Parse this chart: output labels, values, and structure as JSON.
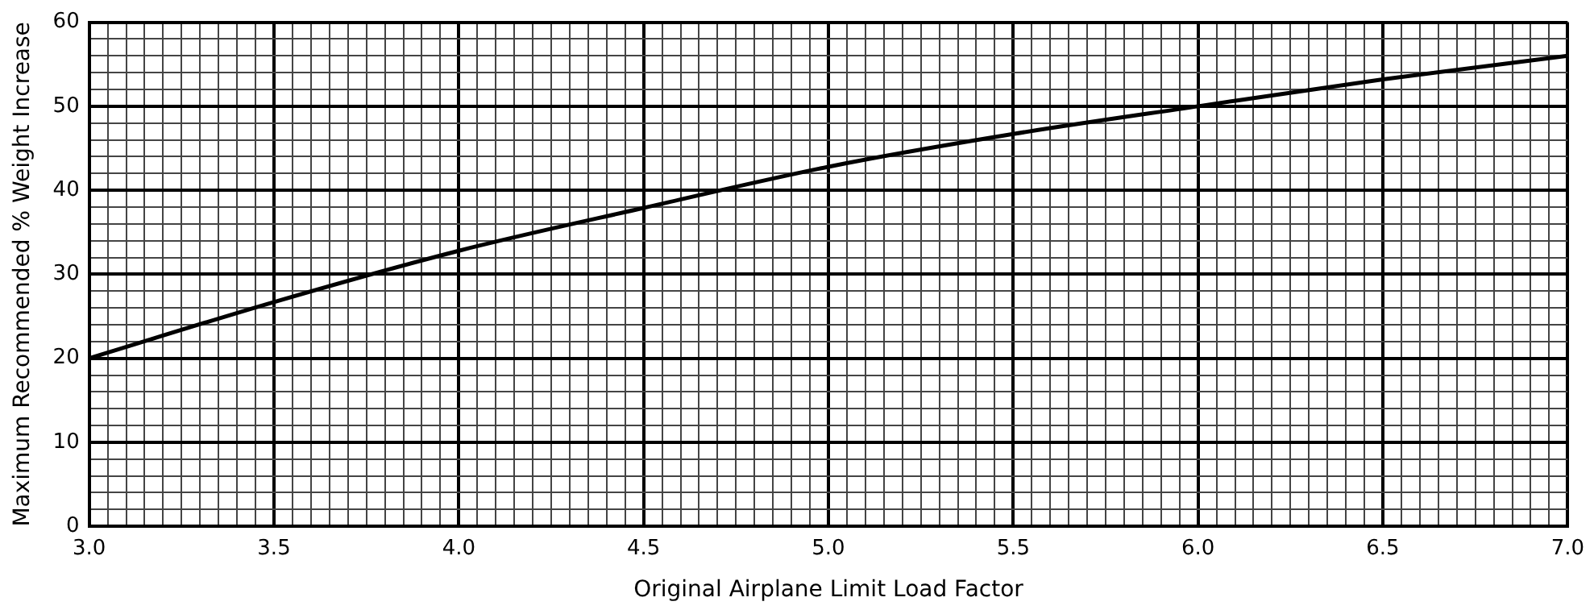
{
  "chart_data": {
    "type": "line",
    "xlabel": "Original Airplane Limit Load Factor",
    "ylabel": "Maximum Recommended % Weight Increase",
    "x": [
      3.0,
      3.5,
      4.0,
      4.5,
      5.0,
      5.5,
      6.0,
      6.5,
      7.0
    ],
    "series": [
      {
        "color": "#000000",
        "values": [
          20,
          26.7,
          32.8,
          37.9,
          42.8,
          46.7,
          50,
          53.2,
          56
        ]
      }
    ],
    "xlim": [
      3.0,
      7.0
    ],
    "xticks": [
      {
        "value": 3.0,
        "label": "3.0"
      },
      {
        "value": 3.05,
        "label": null
      },
      {
        "value": 3.1,
        "label": null
      },
      {
        "value": 3.15,
        "label": null
      },
      {
        "value": 3.2,
        "label": null
      },
      {
        "value": 3.25,
        "label": null
      },
      {
        "value": 3.3,
        "label": null
      },
      {
        "value": 3.35,
        "label": null
      },
      {
        "value": 3.4,
        "label": null
      },
      {
        "value": 3.45,
        "label": null
      },
      {
        "value": 3.5,
        "label": "3.5"
      },
      {
        "value": 3.55,
        "label": null
      },
      {
        "value": 3.6,
        "label": null
      },
      {
        "value": 3.65,
        "label": null
      },
      {
        "value": 3.7,
        "label": null
      },
      {
        "value": 3.75,
        "label": null
      },
      {
        "value": 3.8,
        "label": null
      },
      {
        "value": 3.85,
        "label": null
      },
      {
        "value": 3.9,
        "label": null
      },
      {
        "value": 3.95,
        "label": null
      },
      {
        "value": 4.0,
        "label": "4.0"
      },
      {
        "value": 4.05,
        "label": null
      },
      {
        "value": 4.1,
        "label": null
      },
      {
        "value": 4.15,
        "label": null
      },
      {
        "value": 4.2,
        "label": null
      },
      {
        "value": 4.25,
        "label": null
      },
      {
        "value": 4.3,
        "label": null
      },
      {
        "value": 4.35,
        "label": null
      },
      {
        "value": 4.4,
        "label": null
      },
      {
        "value": 4.45,
        "label": null
      },
      {
        "value": 4.5,
        "label": "4.5"
      },
      {
        "value": 4.55,
        "label": null
      },
      {
        "value": 4.6,
        "label": null
      },
      {
        "value": 4.65,
        "label": null
      },
      {
        "value": 4.7,
        "label": null
      },
      {
        "value": 4.75,
        "label": null
      },
      {
        "value": 4.8,
        "label": null
      },
      {
        "value": 4.85,
        "label": null
      },
      {
        "value": 4.9,
        "label": null
      },
      {
        "value": 4.95,
        "label": null
      },
      {
        "value": 5.0,
        "label": "5.0"
      },
      {
        "value": 5.05,
        "label": null
      },
      {
        "value": 5.1,
        "label": null
      },
      {
        "value": 5.15,
        "label": null
      },
      {
        "value": 5.2,
        "label": null
      },
      {
        "value": 5.25,
        "label": null
      },
      {
        "value": 5.3,
        "label": null
      },
      {
        "value": 5.35,
        "label": null
      },
      {
        "value": 5.4,
        "label": null
      },
      {
        "value": 5.45,
        "label": null
      },
      {
        "value": 5.5,
        "label": "5.5"
      },
      {
        "value": 5.55,
        "label": null
      },
      {
        "value": 5.6,
        "label": null
      },
      {
        "value": 5.65,
        "label": null
      },
      {
        "value": 5.7,
        "label": null
      },
      {
        "value": 5.75,
        "label": null
      },
      {
        "value": 5.8,
        "label": null
      },
      {
        "value": 5.85,
        "label": null
      },
      {
        "value": 5.9,
        "label": null
      },
      {
        "value": 5.95,
        "label": null
      },
      {
        "value": 6.0,
        "label": "6.0"
      },
      {
        "value": 6.05,
        "label": null
      },
      {
        "value": 6.1,
        "label": null
      },
      {
        "value": 6.15,
        "label": null
      },
      {
        "value": 6.2,
        "label": null
      },
      {
        "value": 6.25,
        "label": null
      },
      {
        "value": 6.3,
        "label": null
      },
      {
        "value": 6.35,
        "label": null
      },
      {
        "value": 6.4,
        "label": null
      },
      {
        "value": 6.45,
        "label": null
      },
      {
        "value": 6.5,
        "label": "6.5"
      },
      {
        "value": 6.55,
        "label": null
      },
      {
        "value": 6.6,
        "label": null
      },
      {
        "value": 6.65,
        "label": null
      },
      {
        "value": 6.7,
        "label": null
      },
      {
        "value": 6.75,
        "label": null
      },
      {
        "value": 6.8,
        "label": null
      },
      {
        "value": 6.85,
        "label": null
      },
      {
        "value": 6.9,
        "label": null
      },
      {
        "value": 6.95,
        "label": null
      },
      {
        "value": 7.0,
        "label": "7.0"
      }
    ],
    "ylim": [
      0,
      60
    ],
    "yticks": [
      0,
      {
        "value": 2,
        "label": null
      },
      {
        "value": 4,
        "label": null
      },
      {
        "value": 6,
        "label": null
      },
      {
        "value": 8,
        "label": null
      },
      10,
      {
        "value": 12,
        "label": null
      },
      {
        "value": 14,
        "label": null
      },
      {
        "value": 16,
        "label": null
      },
      {
        "value": 18,
        "label": null
      },
      20,
      {
        "value": 22,
        "label": null
      },
      {
        "value": 24,
        "label": null
      },
      {
        "value": 26,
        "label": null
      },
      {
        "value": 28,
        "label": null
      },
      30,
      {
        "value": 32,
        "label": null
      },
      {
        "value": 34,
        "label": null
      },
      {
        "value": 36,
        "label": null
      },
      {
        "value": 38,
        "label": null
      },
      40,
      {
        "value": 42,
        "label": null
      },
      {
        "value": 44,
        "label": null
      },
      {
        "value": 46,
        "label": null
      },
      {
        "value": 48,
        "label": null
      },
      50,
      {
        "value": 52,
        "label": null
      },
      {
        "value": 54,
        "label": null
      },
      {
        "value": 56,
        "label": null
      },
      {
        "value": 58,
        "label": null
      },
      60
    ],
    "grid": true,
    "marker": "none",
    "line_style": "solid",
    "legend": false
  }
}
